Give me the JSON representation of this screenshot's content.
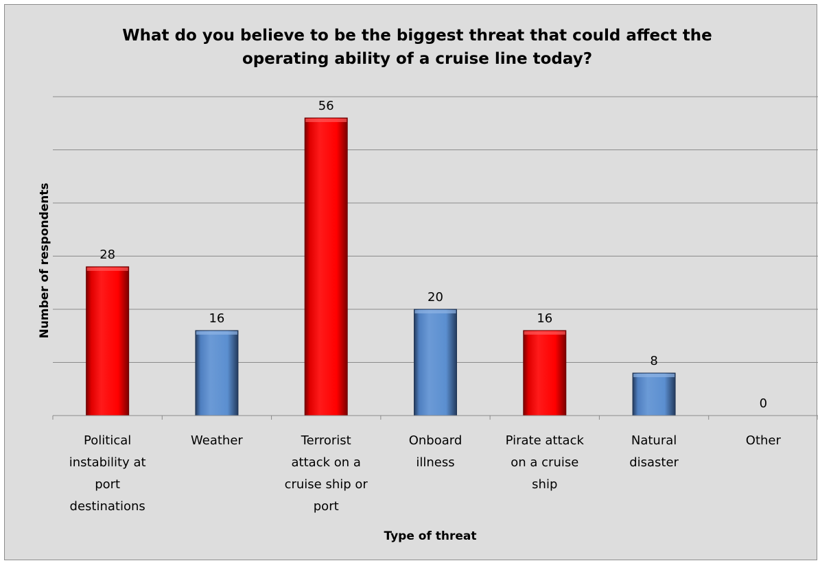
{
  "chart_data": {
    "type": "bar",
    "title_lines": [
      "What do you believe to be the biggest threat that could affect the",
      "operating ability of a cruise line today?"
    ],
    "xlabel": "Type of threat",
    "ylabel": "Number of respondents",
    "categories": [
      [
        "Political",
        "instability at",
        "port",
        "destinations"
      ],
      [
        "Weather"
      ],
      [
        "Terrorist",
        "attack on a",
        "cruise ship or",
        "port"
      ],
      [
        "Onboard",
        "illness"
      ],
      [
        "Pirate attack",
        "on a cruise",
        "ship"
      ],
      [
        "Natural",
        "disaster"
      ],
      [
        "Other"
      ]
    ],
    "values": [
      28,
      16,
      56,
      20,
      16,
      8,
      0
    ],
    "bar_colors": [
      "#ff0000",
      "#5b8fd0",
      "#ff0000",
      "#5b8fd0",
      "#ff0000",
      "#5b8fd0",
      "#5b8fd0"
    ],
    "ylim": [
      0,
      60
    ],
    "y_gridline_step": 10,
    "y_tick_labels_shown": false,
    "grid": true,
    "legend": "none",
    "background_color": "#dddddd"
  }
}
